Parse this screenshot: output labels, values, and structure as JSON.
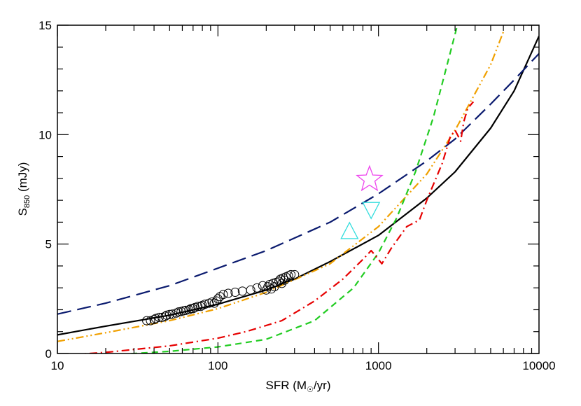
{
  "chart_data": {
    "type": "scatter",
    "x_scale": "log",
    "xlim": [
      10,
      10000
    ],
    "ylim": [
      0,
      15
    ],
    "xlabel": "SFR (M☉/yr)",
    "ylabel": "S850 (mJy)",
    "ylabel_parts": {
      "main": "S",
      "sub": "850",
      "rest": " (mJy)"
    },
    "xlabel_parts": {
      "pre": "SFR (M",
      "sub": "☉",
      "post": "/yr)"
    },
    "x_ticks": [
      10,
      100,
      1000,
      10000
    ],
    "x_tick_labels": [
      "10",
      "100",
      "1000",
      "10000"
    ],
    "y_ticks": [
      0,
      5,
      10,
      15
    ],
    "y_tick_labels": [
      "0",
      "5",
      "10",
      "15"
    ],
    "grid": false,
    "legend": "none",
    "series": [
      {
        "style": "solid",
        "color": "#000000",
        "x": [
          10,
          20,
          50,
          100,
          200,
          300,
          500,
          1000,
          2000,
          3000,
          5000,
          7000,
          10000
        ],
        "y": [
          0.85,
          1.25,
          1.75,
          2.25,
          2.9,
          3.4,
          4.2,
          5.4,
          7.1,
          8.3,
          10.3,
          12.0,
          14.5
        ]
      },
      {
        "style": "long-dash",
        "color": "#0a1a6e",
        "x": [
          10,
          20,
          50,
          100,
          200,
          500,
          1000,
          2000,
          3000,
          5000,
          7000,
          10000
        ],
        "y": [
          1.8,
          2.3,
          3.1,
          3.9,
          4.7,
          6.0,
          7.3,
          8.8,
          9.8,
          11.4,
          12.5,
          13.7
        ]
      },
      {
        "style": "dash-dot-dot",
        "color": "#f0a000",
        "x": [
          10,
          20,
          50,
          100,
          200,
          500,
          1000,
          2000,
          3000,
          5000,
          6000
        ],
        "y": [
          0.55,
          0.95,
          1.5,
          2.05,
          2.8,
          4.1,
          5.8,
          8.2,
          10.2,
          13.2,
          14.7
        ]
      },
      {
        "style": "short-dash",
        "color": "#22cc22",
        "x": [
          10,
          20,
          50,
          100,
          200,
          400,
          700,
          1000,
          1300,
          1700,
          2200,
          2700,
          3100
        ],
        "y": [
          -0.2,
          -0.08,
          0.1,
          0.3,
          0.65,
          1.5,
          3.0,
          4.6,
          6.2,
          8.3,
          10.8,
          13.3,
          15.0
        ]
      },
      {
        "style": "dash-dot",
        "color": "#e60000",
        "x": [
          10,
          20,
          50,
          100,
          150,
          250,
          400,
          600,
          800,
          900,
          950,
          1000,
          1050,
          1200,
          1500,
          1800,
          2000,
          2500,
          2800,
          3000,
          3100,
          3250,
          3400,
          3600,
          3900
        ],
        "y": [
          -0.1,
          0.05,
          0.35,
          0.7,
          1.0,
          1.5,
          2.4,
          3.4,
          4.3,
          4.7,
          4.5,
          4.3,
          4.1,
          4.8,
          5.8,
          6.1,
          7.0,
          8.7,
          9.9,
          10.2,
          10.0,
          9.7,
          10.6,
          11.2,
          11.5
        ]
      }
    ],
    "scatter_circles": {
      "x": [
        36,
        38,
        40,
        41,
        43,
        45,
        47,
        48,
        50,
        52,
        55,
        57,
        59,
        61,
        63,
        66,
        68,
        70,
        72,
        75,
        78,
        80,
        83,
        88,
        92,
        95,
        98,
        100,
        103,
        108,
        116,
        128,
        142,
        160,
        175,
        190,
        200,
        205,
        210,
        215,
        220,
        225,
        230,
        240,
        245,
        250,
        255,
        260,
        265,
        275,
        285,
        300
      ],
      "y": [
        1.5,
        1.5,
        1.55,
        1.6,
        1.65,
        1.65,
        1.7,
        1.75,
        1.78,
        1.8,
        1.85,
        1.9,
        1.92,
        1.95,
        1.97,
        2.0,
        2.05,
        2.05,
        2.1,
        2.15,
        2.15,
        2.2,
        2.25,
        2.3,
        2.35,
        2.3,
        2.4,
        2.5,
        2.6,
        2.7,
        2.75,
        2.8,
        2.85,
        2.9,
        3.0,
        3.1,
        2.9,
        3.05,
        3.15,
        2.95,
        3.2,
        3.05,
        3.25,
        3.3,
        3.4,
        3.2,
        3.45,
        3.35,
        3.5,
        3.55,
        3.6,
        3.6
      ]
    },
    "markers": [
      {
        "shape": "star",
        "color": "#ee44ee",
        "x": 880,
        "y": 7.95
      },
      {
        "shape": "triangle-down",
        "color": "#33dddd",
        "x": 900,
        "y": 6.55
      },
      {
        "shape": "triangle-up",
        "color": "#33dddd",
        "x": 660,
        "y": 5.6
      }
    ]
  }
}
